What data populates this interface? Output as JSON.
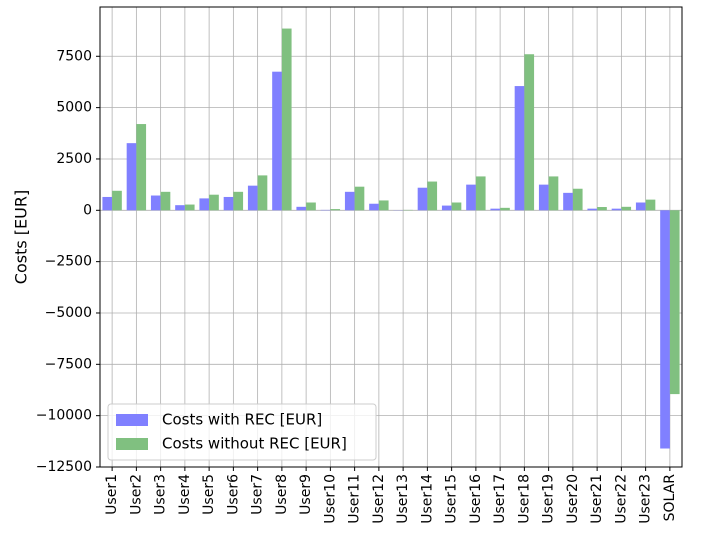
{
  "chart_data": {
    "type": "bar",
    "ylabel": "Costs [EUR]",
    "categories": [
      "User1",
      "User2",
      "User3",
      "User4",
      "User5",
      "User6",
      "User7",
      "User8",
      "User9",
      "User10",
      "User11",
      "User12",
      "User13",
      "User14",
      "User15",
      "User16",
      "User17",
      "User18",
      "User19",
      "User20",
      "User21",
      "User22",
      "User23",
      "SOLAR"
    ],
    "series": [
      {
        "name": "Costs with REC [EUR]",
        "color": "#8080ff",
        "values": [
          650,
          3270,
          720,
          250,
          580,
          650,
          1200,
          6750,
          170,
          20,
          900,
          320,
          10,
          1100,
          230,
          1250,
          80,
          6050,
          1250,
          850,
          80,
          80,
          380,
          -11600
        ]
      },
      {
        "name": "Costs without REC [EUR]",
        "color": "#80c080",
        "values": [
          950,
          4200,
          900,
          280,
          760,
          900,
          1700,
          8850,
          380,
          60,
          1150,
          480,
          20,
          1400,
          380,
          1650,
          120,
          7600,
          1650,
          1050,
          160,
          170,
          520,
          -8950
        ]
      }
    ],
    "ylim": [
      -12500,
      9900
    ],
    "yticks": [
      {
        "value": -12500,
        "label": "−12500"
      },
      {
        "value": -10000,
        "label": "−10000"
      },
      {
        "value": -7500,
        "label": "−7500"
      },
      {
        "value": -5000,
        "label": "−5000"
      },
      {
        "value": -2500,
        "label": "−2500"
      },
      0,
      2500,
      5000,
      7500
    ],
    "grid": true,
    "legend": "lower left"
  }
}
